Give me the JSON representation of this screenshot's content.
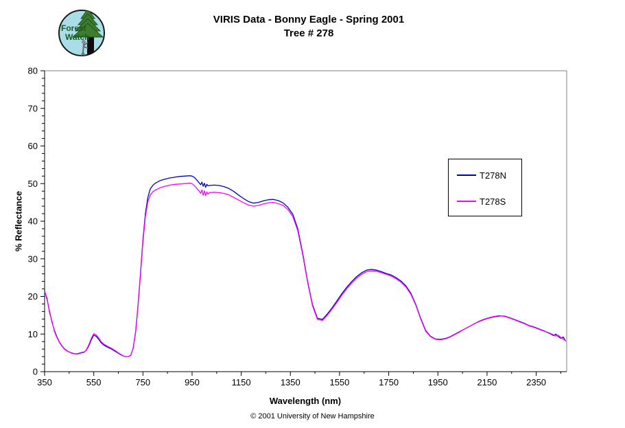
{
  "header": {
    "title_line1": "VIRIS Data - Bonny Eagle - Spring 2001",
    "title_line2": "Tree # 278"
  },
  "logo": {
    "line1": "Forest",
    "line2": "Watch"
  },
  "footer": {
    "copyright": "© 2001 University of New Hampshire"
  },
  "colors": {
    "plot_border_gray": "#808080",
    "axis_black": "#000000",
    "series_t278n": "#0000C0",
    "series_t278s": "#FF00FF",
    "logo_sky": "#A9DEE8",
    "logo_tree_green": "#3E7C2E",
    "logo_text_green": "#1C5A1C"
  },
  "legend": {
    "entries": [
      {
        "label": "T278N",
        "color": "#0000C0"
      },
      {
        "label": "T278S",
        "color": "#FF00FF"
      }
    ]
  },
  "chart_data": {
    "type": "line",
    "title": "VIRIS Data - Bonny Eagle - Spring 2001  Tree # 278",
    "xlabel": "Wavelength (nm)",
    "ylabel": "% Reflectance",
    "xlim": [
      350,
      2474
    ],
    "ylim": [
      0,
      80
    ],
    "x_ticks": [
      350,
      550,
      750,
      950,
      1150,
      1350,
      1550,
      1750,
      1950,
      2150,
      2350
    ],
    "x_minor_step": 100,
    "y_ticks": [
      0,
      10,
      20,
      30,
      40,
      50,
      60,
      70,
      80
    ],
    "y_minor_step": 2,
    "grid": false,
    "legend_position": "right-inside",
    "x": [
      350,
      360,
      370,
      380,
      390,
      400,
      410,
      420,
      430,
      440,
      450,
      460,
      470,
      480,
      490,
      500,
      510,
      520,
      530,
      540,
      550,
      560,
      570,
      580,
      590,
      600,
      610,
      620,
      630,
      640,
      650,
      660,
      670,
      680,
      690,
      700,
      710,
      720,
      730,
      740,
      750,
      760,
      770,
      780,
      790,
      800,
      820,
      840,
      860,
      880,
      900,
      920,
      940,
      950,
      960,
      970,
      980,
      985,
      990,
      995,
      1000,
      1005,
      1010,
      1015,
      1020,
      1040,
      1060,
      1080,
      1100,
      1120,
      1140,
      1160,
      1180,
      1200,
      1220,
      1240,
      1260,
      1280,
      1300,
      1320,
      1340,
      1360,
      1380,
      1400,
      1420,
      1440,
      1460,
      1480,
      1500,
      1520,
      1540,
      1560,
      1580,
      1600,
      1620,
      1640,
      1660,
      1680,
      1700,
      1720,
      1740,
      1760,
      1780,
      1800,
      1820,
      1840,
      1860,
      1880,
      1900,
      1920,
      1940,
      1960,
      1980,
      2000,
      2020,
      2040,
      2060,
      2080,
      2100,
      2120,
      2140,
      2160,
      2180,
      2200,
      2220,
      2240,
      2260,
      2280,
      2300,
      2320,
      2340,
      2360,
      2380,
      2400,
      2410,
      2420,
      2430,
      2440,
      2450,
      2460,
      2470
    ],
    "series": [
      {
        "name": "T278N",
        "color": "#0000C0",
        "values": [
          21.5,
          19.2,
          16.0,
          13.2,
          11.0,
          9.3,
          7.9,
          6.9,
          6.1,
          5.6,
          5.2,
          5.0,
          4.8,
          4.7,
          4.9,
          5.1,
          5.2,
          5.7,
          6.9,
          8.5,
          9.7,
          9.4,
          8.6,
          7.7,
          7.1,
          6.7,
          6.4,
          6.1,
          5.7,
          5.3,
          4.9,
          4.5,
          4.2,
          4.0,
          4.0,
          4.3,
          6.2,
          10.5,
          17.5,
          26.0,
          35.0,
          42.0,
          46.3,
          48.6,
          49.5,
          50.1,
          50.8,
          51.2,
          51.5,
          51.7,
          51.9,
          52.0,
          52.1,
          52.0,
          51.6,
          50.9,
          50.1,
          49.7,
          50.4,
          49.3,
          50.1,
          49.0,
          49.8,
          49.4,
          49.5,
          49.6,
          49.5,
          49.2,
          48.7,
          47.9,
          46.9,
          46.0,
          45.2,
          44.8,
          45.0,
          45.4,
          45.7,
          45.8,
          45.5,
          44.9,
          43.7,
          41.8,
          38.0,
          31.5,
          24.0,
          17.8,
          14.2,
          13.9,
          15.3,
          17.0,
          18.9,
          20.8,
          22.5,
          24.0,
          25.3,
          26.3,
          27.0,
          27.2,
          27.0,
          26.6,
          26.1,
          25.7,
          25.0,
          24.1,
          22.8,
          20.9,
          17.9,
          14.2,
          11.0,
          9.4,
          8.7,
          8.6,
          8.8,
          9.3,
          10.0,
          10.7,
          11.4,
          12.1,
          12.8,
          13.4,
          13.9,
          14.3,
          14.6,
          14.8,
          14.8,
          14.4,
          13.9,
          13.4,
          12.9,
          12.3,
          11.9,
          11.4,
          10.9,
          10.3,
          10.0,
          9.6,
          10.0,
          9.3,
          8.9,
          9.2,
          8.1
        ]
      },
      {
        "name": "T278S",
        "color": "#FF00FF",
        "values": [
          21.3,
          19.6,
          15.6,
          13.5,
          10.7,
          9.1,
          7.8,
          6.8,
          6.0,
          5.5,
          5.3,
          4.9,
          4.8,
          4.6,
          4.8,
          5.0,
          5.1,
          5.8,
          7.2,
          8.9,
          10.1,
          9.8,
          9.0,
          8.0,
          7.4,
          7.0,
          6.6,
          6.3,
          5.9,
          5.5,
          5.0,
          4.6,
          4.2,
          4.0,
          4.0,
          4.3,
          6.1,
          10.3,
          17.2,
          25.5,
          34.3,
          41.2,
          45.2,
          47.0,
          47.8,
          48.3,
          48.9,
          49.3,
          49.6,
          49.8,
          49.9,
          50.0,
          50.1,
          50.0,
          49.4,
          48.7,
          47.9,
          47.4,
          48.3,
          46.9,
          48.1,
          46.8,
          47.8,
          47.2,
          47.6,
          47.7,
          47.6,
          47.4,
          47.0,
          46.3,
          45.6,
          44.9,
          44.3,
          44.0,
          44.2,
          44.6,
          44.9,
          45.0,
          44.7,
          44.2,
          43.1,
          41.2,
          37.5,
          31.1,
          23.7,
          17.5,
          13.9,
          13.6,
          15.0,
          16.7,
          18.5,
          20.4,
          22.1,
          23.6,
          24.9,
          25.9,
          26.6,
          26.8,
          26.7,
          26.3,
          25.9,
          25.4,
          24.7,
          23.8,
          22.5,
          20.6,
          17.7,
          14.0,
          10.8,
          9.3,
          8.6,
          8.5,
          8.7,
          9.2,
          9.9,
          10.6,
          11.4,
          12.1,
          12.8,
          13.5,
          14.0,
          14.4,
          14.7,
          14.9,
          14.7,
          14.3,
          13.8,
          13.3,
          12.8,
          12.2,
          11.8,
          11.3,
          10.8,
          10.4,
          10.1,
          9.8,
          9.5,
          9.7,
          9.1,
          8.6,
          8.3
        ]
      }
    ]
  }
}
